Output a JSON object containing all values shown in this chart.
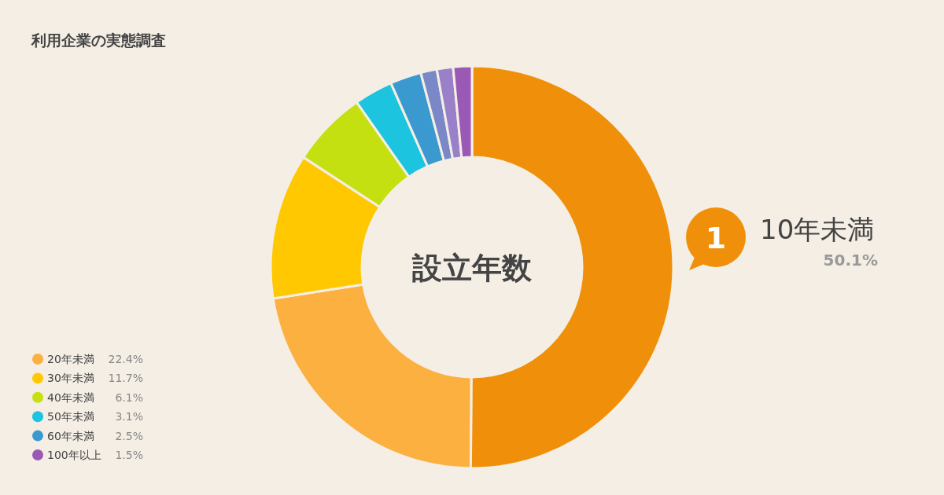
{
  "chart_data": {
    "type": "donut",
    "title": "利用企業の実態調査",
    "annotations": [
      "設立年数",
      "1"
    ],
    "categories": [
      "10年未満",
      "20年未満",
      "30年未満",
      "40年未満",
      "50年未満",
      "60年未満",
      null,
      null,
      "100年以上"
    ],
    "values": [
      50.1,
      22.4,
      11.7,
      6.1,
      3.1,
      2.5,
      1.3,
      1.3,
      1.5
    ],
    "value_labels": [
      "50.1%",
      "22.4%",
      "11.7%",
      "6.1%",
      "3.1%",
      "2.5%",
      null,
      null,
      "1.5%"
    ],
    "colors": [
      "#f0900a",
      "#fbb040",
      "#ffc800",
      "#c5e010",
      "#1cc4e0",
      "#3a9ad0",
      "#7a88c8",
      "#9a80c8",
      "#9b59b6"
    ],
    "legend": "bottom left"
  }
}
